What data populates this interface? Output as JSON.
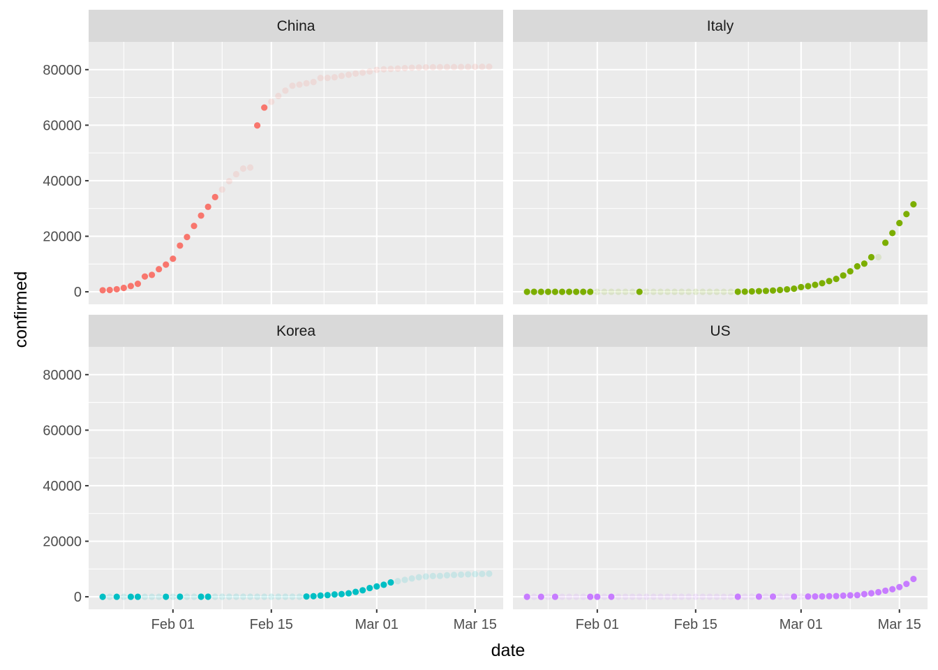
{
  "chart_data": {
    "type": "scatter",
    "facet_layout": "2x2 grid, shared axes",
    "xlabel": "date",
    "ylabel": "confirmed",
    "xlim": [
      "2020-01-20",
      "2020-03-19"
    ],
    "ylim": [
      -4500,
      90000
    ],
    "x_ticks": [
      {
        "date": "2020-02-01",
        "label": "Feb 01"
      },
      {
        "date": "2020-02-15",
        "label": "Feb 15"
      },
      {
        "date": "2020-03-01",
        "label": "Mar 01"
      },
      {
        "date": "2020-03-15",
        "label": "Mar 15"
      }
    ],
    "y_ticks": [
      {
        "value": 0,
        "label": "0"
      },
      {
        "value": 20000,
        "label": "20000"
      },
      {
        "value": 40000,
        "label": "40000"
      },
      {
        "value": 60000,
        "label": "60000"
      },
      {
        "value": 80000,
        "label": "80000"
      }
    ],
    "grid": true,
    "legend": "none",
    "panel_background": "#EBEBEB",
    "strip_background": "#D9D9D9",
    "faded_point_opacity": 0.15,
    "series": [
      {
        "name": "China",
        "color": "#F8766D",
        "start_date": "2020-01-22",
        "values": [
          548,
          643,
          920,
          1406,
          2075,
          2877,
          5509,
          6087,
          8141,
          9802,
          11891,
          16630,
          19716,
          23707,
          27440,
          30587,
          34110,
          36814,
          39829,
          42354,
          44386,
          44759,
          59895,
          66358,
          68413,
          70513,
          72434,
          74211,
          74619,
          75077,
          75550,
          77001,
          77022,
          77241,
          77754,
          78166,
          78600,
          78928,
          79356,
          79932,
          80136,
          80261,
          80386,
          80537,
          80690,
          80770,
          80823,
          80860,
          80887,
          80921,
          80932,
          80945,
          80977,
          81003,
          81033,
          81058
        ],
        "bold": [
          1,
          1,
          1,
          1,
          1,
          1,
          1,
          1,
          1,
          1,
          1,
          1,
          1,
          1,
          1,
          1,
          1,
          0,
          0,
          0,
          0,
          0,
          1,
          1,
          0,
          0,
          0,
          0,
          0,
          0,
          0,
          0,
          0,
          0,
          0,
          0,
          0,
          0,
          0,
          0,
          0,
          0,
          0,
          0,
          0,
          0,
          0,
          0,
          0,
          0,
          0,
          0,
          0,
          0,
          0,
          0
        ]
      },
      {
        "name": "Italy",
        "color": "#7CAE00",
        "start_date": "2020-01-22",
        "values": [
          0,
          0,
          0,
          0,
          0,
          0,
          0,
          0,
          0,
          2,
          2,
          2,
          2,
          2,
          2,
          2,
          3,
          3,
          3,
          3,
          3,
          3,
          3,
          3,
          3,
          3,
          3,
          3,
          3,
          3,
          20,
          62,
          155,
          229,
          322,
          453,
          655,
          888,
          1128,
          1694,
          2036,
          2502,
          3089,
          3858,
          4636,
          5883,
          7375,
          9172,
          10149,
          12462,
          12462,
          17660,
          21157,
          24747,
          27980,
          31506
        ],
        "bold": [
          1,
          1,
          1,
          1,
          1,
          1,
          1,
          1,
          1,
          1,
          0,
          0,
          0,
          0,
          0,
          0,
          1,
          0,
          0,
          0,
          0,
          0,
          0,
          0,
          0,
          0,
          0,
          0,
          0,
          0,
          1,
          1,
          1,
          1,
          1,
          1,
          1,
          1,
          1,
          1,
          1,
          1,
          1,
          1,
          1,
          1,
          1,
          1,
          1,
          1,
          0,
          1,
          1,
          1,
          1,
          1
        ]
      },
      {
        "name": "Korea",
        "color": "#00BFC4",
        "start_date": "2020-01-22",
        "values": [
          1,
          1,
          2,
          2,
          3,
          4,
          4,
          4,
          4,
          11,
          12,
          15,
          15,
          16,
          19,
          23,
          24,
          24,
          25,
          27,
          28,
          28,
          28,
          28,
          28,
          29,
          30,
          31,
          31,
          104,
          204,
          433,
          602,
          833,
          977,
          1261,
          1766,
          2337,
          3150,
          3736,
          4335,
          5186,
          5621,
          6088,
          6593,
          7041,
          7314,
          7478,
          7513,
          7755,
          7869,
          7979,
          8086,
          8162,
          8236,
          8320
        ],
        "bold": [
          1,
          0,
          1,
          0,
          1,
          1,
          0,
          0,
          0,
          1,
          0,
          1,
          0,
          0,
          1,
          1,
          0,
          0,
          0,
          0,
          0,
          0,
          0,
          0,
          0,
          0,
          0,
          0,
          0,
          1,
          1,
          1,
          1,
          1,
          1,
          1,
          1,
          1,
          1,
          1,
          1,
          1,
          0,
          0,
          0,
          0,
          0,
          0,
          0,
          0,
          0,
          0,
          0,
          0,
          0,
          0
        ]
      },
      {
        "name": "US",
        "color": "#C77CFF",
        "start_date": "2020-01-22",
        "values": [
          1,
          1,
          2,
          2,
          5,
          5,
          5,
          5,
          5,
          7,
          8,
          8,
          11,
          11,
          11,
          11,
          11,
          11,
          11,
          11,
          12,
          12,
          13,
          13,
          13,
          13,
          13,
          13,
          13,
          13,
          15,
          15,
          15,
          51,
          51,
          57,
          58,
          60,
          68,
          74,
          98,
          118,
          149,
          217,
          262,
          402,
          518,
          583,
          959,
          1281,
          1663,
          2179,
          2727,
          3499,
          4632,
          6421
        ],
        "bold": [
          1,
          0,
          1,
          0,
          1,
          0,
          0,
          0,
          0,
          1,
          1,
          0,
          1,
          0,
          0,
          0,
          0,
          0,
          0,
          0,
          0,
          0,
          0,
          0,
          0,
          0,
          0,
          0,
          0,
          0,
          1,
          0,
          0,
          1,
          0,
          1,
          0,
          0,
          1,
          0,
          1,
          1,
          1,
          1,
          1,
          1,
          1,
          1,
          1,
          1,
          1,
          1,
          1,
          1,
          1,
          1
        ]
      }
    ]
  }
}
